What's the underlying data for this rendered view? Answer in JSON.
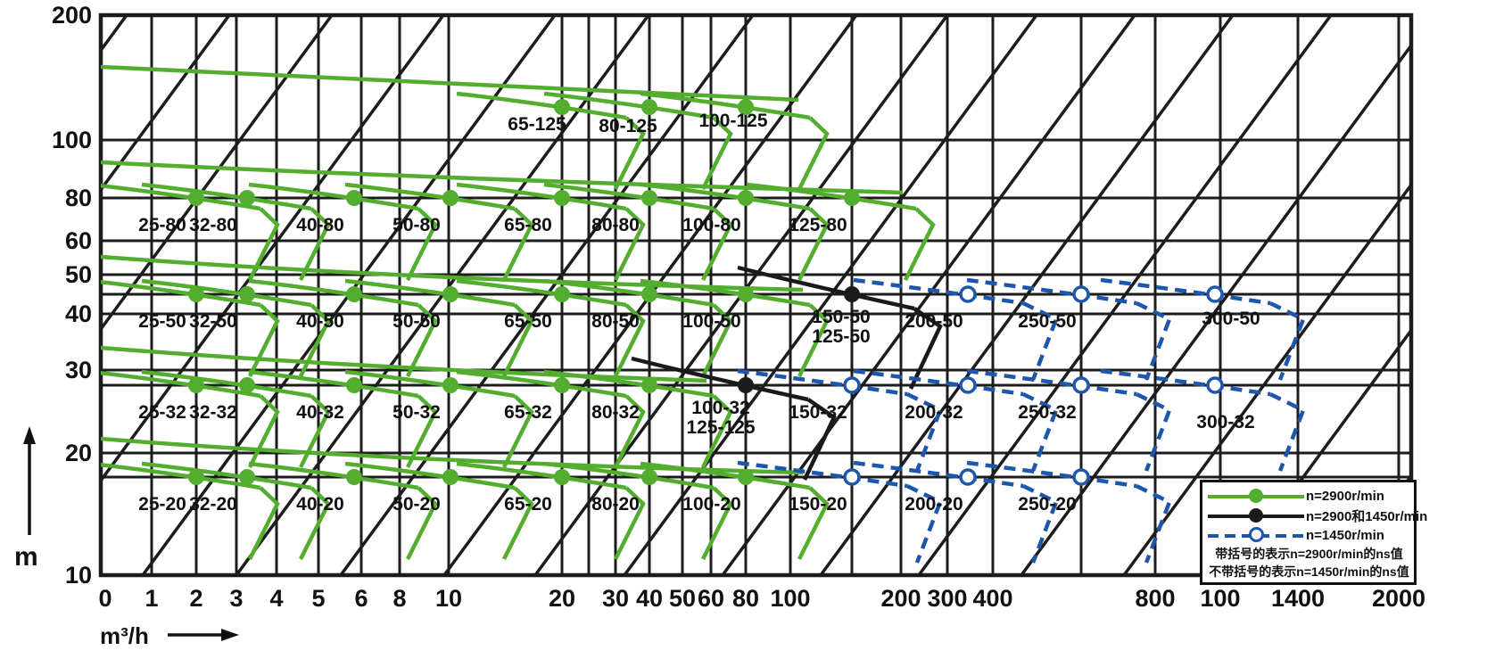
{
  "axes": {
    "x_unit": "m³/h",
    "y_unit": "m",
    "x_ticks": [
      "0",
      "1",
      "2",
      "3",
      "4",
      "5",
      "6",
      "8",
      "10",
      "20",
      "30",
      "40",
      "50",
      "60",
      "80",
      "100",
      "200",
      "300",
      "400",
      "800",
      "100",
      "1400",
      "2000"
    ],
    "y_ticks": [
      "200",
      "100",
      "80",
      "60",
      "50",
      "40",
      "30",
      "20",
      "10"
    ]
  },
  "legend": {
    "items": [
      {
        "label": "n=2900r/min",
        "color": "#53ad2f",
        "style": "solid",
        "marker": "filled-circle"
      },
      {
        "label": "n=2900和1450r/min",
        "color": "#1a1a1a",
        "style": "solid",
        "marker": "filled-circle"
      },
      {
        "label": "n=1450r/min",
        "color": "#1d57ad",
        "style": "dashed",
        "marker": "open-circle"
      }
    ],
    "notes": [
      "带括号的表示n=2900r/min的ns值",
      "不带括号的表示n=1450r/min的ns值"
    ]
  },
  "chart_data": {
    "type": "line",
    "title": "",
    "xlabel": "m³/h",
    "ylabel": "m",
    "x_scale": "logarithmic (compressed 0-10 section at left)",
    "y_scale": "logarithmic",
    "xlim": [
      0,
      2400
    ],
    "ylim": [
      10,
      200
    ],
    "grid": true,
    "legend_position": "bottom-right",
    "x_ticks": [
      "0",
      "1",
      "2",
      "3",
      "4",
      "5",
      "6",
      "8",
      "10",
      "20",
      "30",
      "40",
      "50",
      "60",
      "80",
      "100",
      "200",
      "300",
      "400",
      "800",
      "100",
      "1400",
      "2000"
    ],
    "y_ticks": [
      "200",
      "100",
      "80",
      "60",
      "50",
      "40",
      "30",
      "20",
      "10"
    ],
    "ns_diagonal_lines": true,
    "series": [
      {
        "name": "n=2900r/min",
        "color": "#53ad2f",
        "line_style": "solid",
        "marker": "filled-circle",
        "pumps": [
          {
            "model": "65-125",
            "q_m3h": 20,
            "h_m": 125
          },
          {
            "model": "80-125",
            "q_m3h": 40,
            "h_m": 125
          },
          {
            "model": "100-125",
            "q_m3h": 80,
            "h_m": 125
          },
          {
            "model": "25-80",
            "q_m3h": 2,
            "h_m": 80
          },
          {
            "model": "32-80",
            "q_m3h": 3.3,
            "h_m": 80
          },
          {
            "model": "40-80",
            "q_m3h": 6,
            "h_m": 80
          },
          {
            "model": "50-80",
            "q_m3h": 10.5,
            "h_m": 80
          },
          {
            "model": "65-80",
            "q_m3h": 20,
            "h_m": 80
          },
          {
            "model": "80-80",
            "q_m3h": 40,
            "h_m": 80
          },
          {
            "model": "100-80",
            "q_m3h": 80,
            "h_m": 80
          },
          {
            "model": "125-80",
            "q_m3h": 150,
            "h_m": 80
          },
          {
            "model": "25-50",
            "q_m3h": 2,
            "h_m": 50
          },
          {
            "model": "32-50",
            "q_m3h": 3.3,
            "h_m": 50
          },
          {
            "model": "40-50",
            "q_m3h": 6,
            "h_m": 50
          },
          {
            "model": "50-50",
            "q_m3h": 10.5,
            "h_m": 50
          },
          {
            "model": "65-50",
            "q_m3h": 20,
            "h_m": 50
          },
          {
            "model": "80-50",
            "q_m3h": 40,
            "h_m": 50
          },
          {
            "model": "100-50",
            "q_m3h": 80,
            "h_m": 50
          },
          {
            "model": "25-32",
            "q_m3h": 2,
            "h_m": 32
          },
          {
            "model": "32-32",
            "q_m3h": 3.3,
            "h_m": 32
          },
          {
            "model": "40-32",
            "q_m3h": 6,
            "h_m": 32
          },
          {
            "model": "50-32",
            "q_m3h": 10.5,
            "h_m": 32
          },
          {
            "model": "65-32",
            "q_m3h": 20,
            "h_m": 32
          },
          {
            "model": "80-32",
            "q_m3h": 40,
            "h_m": 32
          },
          {
            "model": "25-20",
            "q_m3h": 2,
            "h_m": 20
          },
          {
            "model": "32-20",
            "q_m3h": 3.3,
            "h_m": 20
          },
          {
            "model": "40-20",
            "q_m3h": 6,
            "h_m": 20
          },
          {
            "model": "50-20",
            "q_m3h": 10.5,
            "h_m": 20
          },
          {
            "model": "65-20",
            "q_m3h": 20,
            "h_m": 20
          },
          {
            "model": "80-20",
            "q_m3h": 40,
            "h_m": 20
          },
          {
            "model": "100-20",
            "q_m3h": 80,
            "h_m": 20
          }
        ]
      },
      {
        "name": "n=2900和1450r/min",
        "color": "#1a1a1a",
        "line_style": "solid",
        "marker": "filled-circle",
        "pumps": [
          {
            "model": "150-50",
            "label2": "125-50",
            "q_m3h": 150,
            "h_m": 50
          },
          {
            "model": "100-32",
            "label2": "125-125",
            "q_m3h": 80,
            "h_m": 32
          }
        ]
      },
      {
        "name": "n=1450r/min",
        "color": "#1d57ad",
        "line_style": "dashed",
        "marker": "open-circle",
        "pumps": [
          {
            "model": "200-50",
            "q_m3h": 330,
            "h_m": 50
          },
          {
            "model": "250-50",
            "q_m3h": 600,
            "h_m": 50
          },
          {
            "model": "300-50",
            "q_m3h": 1000,
            "h_m": 50
          },
          {
            "model": "150-32",
            "q_m3h": 150,
            "h_m": 32
          },
          {
            "model": "200-32",
            "q_m3h": 330,
            "h_m": 32
          },
          {
            "model": "250-32",
            "q_m3h": 600,
            "h_m": 32
          },
          {
            "model": "300-32",
            "q_m3h": 1000,
            "h_m": 32
          },
          {
            "model": "150-20",
            "q_m3h": 150,
            "h_m": 20
          },
          {
            "model": "200-20",
            "q_m3h": 330,
            "h_m": 20
          },
          {
            "model": "250-20",
            "q_m3h": 600,
            "h_m": 20
          }
        ]
      }
    ]
  }
}
